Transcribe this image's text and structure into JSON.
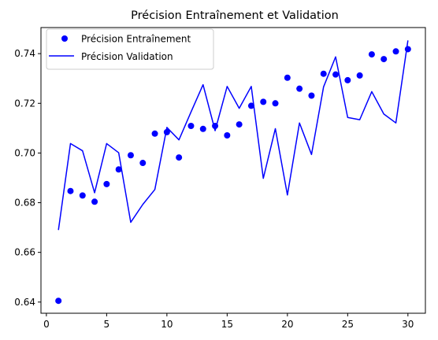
{
  "chart_data": {
    "type": "line",
    "title": "Précision Entraînement et Validation",
    "xlabel": "",
    "ylabel": "",
    "xlim": [
      -0.45,
      31.45
    ],
    "ylim": [
      0.6355,
      0.7505
    ],
    "xticks": [
      0,
      5,
      10,
      15,
      20,
      25,
      30
    ],
    "xtick_labels": [
      "0",
      "5",
      "10",
      "15",
      "20",
      "25",
      "30"
    ],
    "yticks": [
      0.64,
      0.66,
      0.68,
      0.7,
      0.72,
      0.74
    ],
    "ytick_labels": [
      "0.64",
      "0.66",
      "0.68",
      "0.70",
      "0.72",
      "0.74"
    ],
    "grid": false,
    "legend_position": "upper-left",
    "x": [
      1,
      2,
      3,
      4,
      5,
      6,
      7,
      8,
      9,
      10,
      11,
      12,
      13,
      14,
      15,
      16,
      17,
      18,
      19,
      20,
      21,
      22,
      23,
      24,
      25,
      26,
      27,
      28,
      29,
      30
    ],
    "series": [
      {
        "name": "Précision Entraînement",
        "style": "markers",
        "color": "#0000ff",
        "values": [
          0.6405,
          0.6847,
          0.6829,
          0.6804,
          0.6875,
          0.6934,
          0.6991,
          0.696,
          0.7078,
          0.7084,
          0.6982,
          0.7109,
          0.7097,
          0.7109,
          0.7071,
          0.7115,
          0.719,
          0.7206,
          0.72,
          0.7303,
          0.7259,
          0.7231,
          0.7319,
          0.7316,
          0.7293,
          0.7312,
          0.7397,
          0.7378,
          0.7409,
          0.7418
        ]
      },
      {
        "name": "Précision Validation",
        "style": "line",
        "color": "#0000ff",
        "values": [
          0.669,
          0.7038,
          0.7009,
          0.684,
          0.7038,
          0.7001,
          0.6721,
          0.6793,
          0.6853,
          0.7103,
          0.7053,
          0.7165,
          0.7275,
          0.709,
          0.7268,
          0.718,
          0.7268,
          0.6898,
          0.7098,
          0.6831,
          0.7121,
          0.6994,
          0.7266,
          0.7387,
          0.7143,
          0.7134,
          0.7247,
          0.7157,
          0.7121,
          0.7453
        ]
      }
    ]
  }
}
